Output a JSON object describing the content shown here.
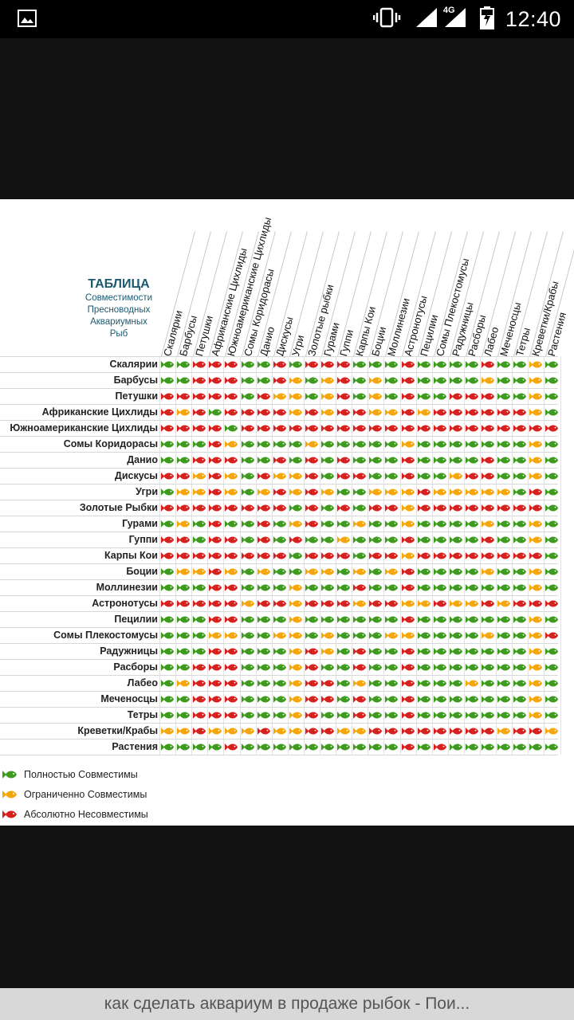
{
  "status_bar": {
    "time": "12:40",
    "network": "4G",
    "icons": [
      "gallery-icon",
      "vibrate-icon",
      "signal-icon",
      "battery-charging-icon"
    ]
  },
  "table": {
    "title": "ТАБЛИЦА",
    "subtitle": [
      "Совместимости",
      "Пресноводных",
      "Аквариумных",
      "Рыб"
    ],
    "columns": [
      "Скалярии",
      "Барбусы",
      "Петушки",
      "Африканские Цихлиды",
      "Южноамериканские Цихлиды",
      "Сомы Коридорасы",
      "Данио",
      "Дискусы",
      "Угри",
      "Золотые рыбки",
      "Гурами",
      "Гуппи",
      "Карпы Кои",
      "Боции",
      "Моллинезии",
      "Астронотусы",
      "Пецилии",
      "Сомы Плекостомусы",
      "Радужницы",
      "Расборы",
      "Лабео",
      "Меченосцы",
      "Тетры",
      "Креветки/Крабы",
      "Растения"
    ],
    "rows": [
      "Скалярии",
      "Барбусы",
      "Петушки",
      "Африканские Цихлиды",
      "Южноамериканские Цихлиды",
      "Сомы Коридорасы",
      "Данио",
      "Дискусы",
      "Угри",
      "Золотые Рыбки",
      "Гурами",
      "Гуппи",
      "Карпы Кои",
      "Боции",
      "Моллинезии",
      "Астронотусы",
      "Пецилии",
      "Сомы Плекостомусы",
      "Радужницы",
      "Расборы",
      "Лабео",
      "Меченосцы",
      "Тетры",
      "Креветки/Крабы",
      "Растения"
    ],
    "matrix": [
      "GGRRRGGRGRRRGGGRGGGGRGGOG",
      "GGRRRGGROGORGOGRGGGGOGGOG",
      "RRRRRGROOGORGOGRGGRRRGGOG",
      "RORGRRRRORORROORORRRRRROG",
      "RRRRGRRRRRRRRRRRRRRRRRRRR",
      "GGGROGGGGOGGGGGOGGGGGGGOG",
      "GGRRRGGRGRGRGGGRGGGGRGGOG",
      "RROROGROORGRRGGRGGORRGGOG",
      "GOOROGOROROGGOOOROOOOOGRG",
      "RRRRRRRRGRGRGRRORRRRRRRRG",
      "GOGRGGRGORGGOGGOGGGGOGGOG",
      "RRGRRGRGRGGOGGGRGGGGRGGOG",
      "RRRRRRRRGRRRGRRORRRRRRRRG",
      "GOOROGOGGOOGOGORGGGGOGGOG",
      "GGGRRGGGOGGGRGGRGGGGGGGOG",
      "RRRRRORRORRRORROOROORORRR",
      "GGGRRGGGOGGGGGGRGGGGGGGOG",
      "GGGOOGGOOGOGGGOOGGGGOGGOR",
      "GGGRRGGGOROGRGGRGGGGGGGOG",
      "GGRRRGGGORGGRGGRGGGGGGGOG",
      "GORRRGGGORRGOGGRGGGOGGGOG",
      "GGRRRGGGORRGRGGRGGGGGGGOG",
      "GGRRRGGGORGGRGGRGGGGGGGOG",
      "OOROOOROORROORRRRRRRRORRO",
      "GGGGRGGGGGGGGGGRGRGGGGGGG"
    ]
  },
  "legend": [
    {
      "label": "Полностью Совместимы",
      "color": "#3f9b1f"
    },
    {
      "label": "Ограниченно  Совместимы",
      "color": "#f5a60a"
    },
    {
      "label": "Абсолютно  Несовместимы",
      "color": "#d7211f"
    }
  ],
  "colors": {
    "G": "#3f9b1f",
    "O": "#f5a60a",
    "R": "#d7211f"
  },
  "caption": "как сделать аквариум в продаже рыбок - Пои..."
}
